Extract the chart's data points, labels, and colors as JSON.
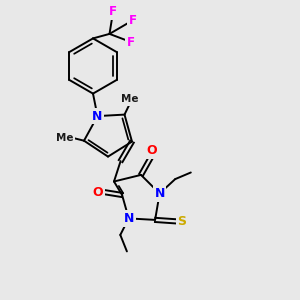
{
  "background_color": "#e8e8e8",
  "atom_colors": {
    "N": "#0000ff",
    "O": "#ff0000",
    "S": "#ccaa00",
    "F": "#ff00ff",
    "C": "#000000"
  },
  "bond_color": "#000000",
  "bond_width": 1.4,
  "figsize": [
    3.0,
    3.0
  ],
  "dpi": 100
}
